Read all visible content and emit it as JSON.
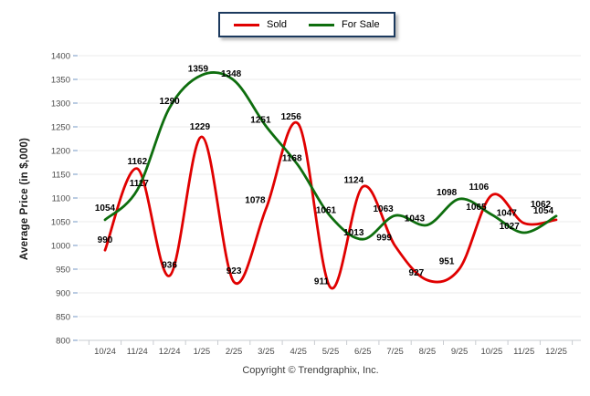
{
  "legend": {
    "items": [
      {
        "label": "Sold",
        "color": "#e00000"
      },
      {
        "label": "For Sale",
        "color": "#0e6e0e"
      }
    ]
  },
  "footer": {
    "copyright": "Copyright © Trendgraphix, Inc."
  },
  "chart_data": {
    "type": "line",
    "title": "",
    "xlabel": "",
    "ylabel": "Average Price (in $,000)",
    "categories": [
      "10/24",
      "11/24",
      "12/24",
      "1/25",
      "2/25",
      "3/25",
      "4/25",
      "5/25",
      "6/25",
      "7/25",
      "8/25",
      "9/25",
      "10/25",
      "11/25",
      "12/25"
    ],
    "series": [
      {
        "name": "Sold",
        "color": "#e00000",
        "values": [
          990,
          1162,
          936,
          1229,
          923,
          1078,
          1256,
          911,
          1124,
          999,
          927,
          951,
          1106,
          1047,
          1054
        ]
      },
      {
        "name": "For Sale",
        "color": "#0e6e0e",
        "values": [
          1054,
          1117,
          1290,
          1359,
          1348,
          1251,
          1168,
          1061,
          1013,
          1063,
          1043,
          1098,
          1065,
          1027,
          1062
        ]
      }
    ],
    "ylim": [
      800,
      1400
    ],
    "yticks": [
      800,
      850,
      900,
      950,
      1000,
      1050,
      1100,
      1150,
      1200,
      1250,
      1300,
      1350,
      1400
    ],
    "grid": true,
    "curve": "smooth",
    "data_labels": true,
    "legend_position": "top-center"
  }
}
